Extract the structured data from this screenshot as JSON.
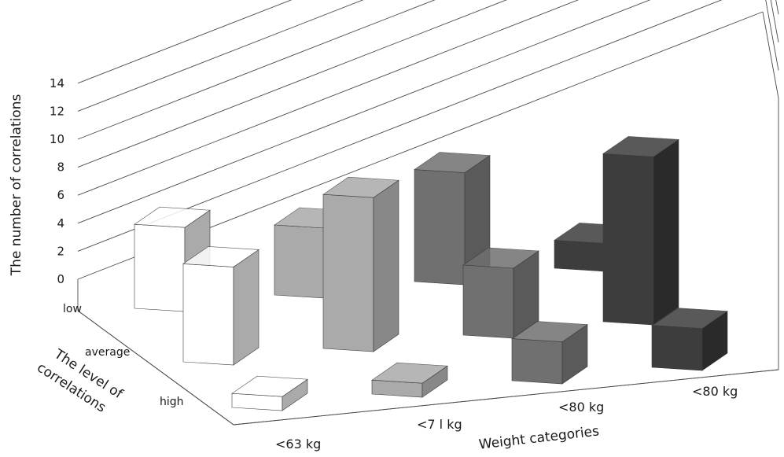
{
  "chart_data": {
    "type": "bar",
    "subtype": "3d-column",
    "title": "",
    "ylabel": "The number of correlations",
    "xlabel": "Weight categories",
    "zlabel": "The level of correlations",
    "ylim": [
      0,
      14
    ],
    "yticks": [
      "0",
      "2",
      "4",
      "6",
      "8",
      "10",
      "12",
      "14"
    ],
    "categories": [
      "<63 kg",
      "<7 l kg",
      "<80 kg",
      "<80 kg"
    ],
    "depth_categories": [
      "low",
      "average",
      "high"
    ],
    "grid": true,
    "series": [
      {
        "name": "low",
        "values": [
          6,
          5,
          8,
          2
        ]
      },
      {
        "name": "average",
        "values": [
          7,
          11,
          5,
          12
        ]
      },
      {
        "name": "high",
        "values": [
          1,
          1,
          3,
          3
        ]
      }
    ],
    "colors": {
      "cat_0": [
        "#ffffff",
        "#aaaaaa"
      ],
      "cat_1": [
        "#aaaaaa",
        "#888888"
      ],
      "cat_2": [
        "#707070",
        "#5a5a5a"
      ],
      "cat_3": [
        "#3d3d3d",
        "#2a2a2a"
      ]
    }
  }
}
